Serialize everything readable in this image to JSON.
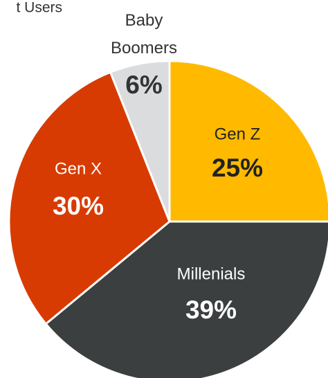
{
  "chart_data": {
    "type": "pie",
    "title": "t Users",
    "categories": [
      "Gen Z",
      "Millenials",
      "Gen X",
      "Baby Boomers"
    ],
    "values": [
      25,
      39,
      30,
      6
    ],
    "value_labels": [
      "25%",
      "39%",
      "30%",
      "6%"
    ],
    "colors": [
      "#FFBA00",
      "#3B3F3F",
      "#D83B01",
      "#DADCDD"
    ]
  }
}
